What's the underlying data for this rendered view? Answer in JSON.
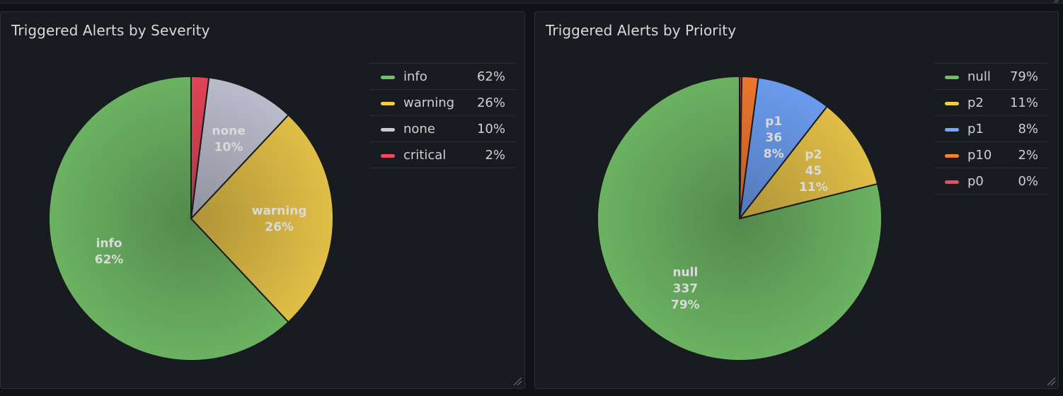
{
  "chart_data": [
    {
      "type": "pie",
      "title": "Triggered Alerts by Severity",
      "series": [
        {
          "name": "info",
          "percent": 62,
          "label": "info",
          "pct_label": "62%",
          "color": "#73bf69"
        },
        {
          "name": "warning",
          "percent": 26,
          "label": "warning",
          "pct_label": "26%",
          "color": "#f2cc4c"
        },
        {
          "name": "none",
          "percent": 10,
          "label": "none",
          "pct_label": "10%",
          "color": "#c8c9da"
        },
        {
          "name": "critical",
          "percent": 2,
          "label": "critical",
          "pct_label": "2%",
          "color": "#f2495c"
        }
      ],
      "legend": {
        "placement": "right",
        "show_percent": true
      }
    },
    {
      "type": "pie",
      "title": "Triggered Alerts by Priority",
      "series": [
        {
          "name": "null",
          "value": 337,
          "percent": 79,
          "label": "null",
          "value_label": "337",
          "pct_label": "79%",
          "color": "#73bf69"
        },
        {
          "name": "p2",
          "value": 45,
          "percent": 11,
          "label": "p2",
          "value_label": "45",
          "pct_label": "11%",
          "color": "#f2cc4c"
        },
        {
          "name": "p1",
          "value": 36,
          "percent": 8,
          "label": "p1",
          "value_label": "36",
          "pct_label": "8%",
          "color": "#73a7ff"
        },
        {
          "name": "p10",
          "value": 8,
          "percent": 2,
          "label": "p10",
          "value_label": "",
          "pct_label": "2%",
          "color": "#ff7f30"
        },
        {
          "name": "p0",
          "value": 1,
          "percent": 0,
          "label": "p0",
          "value_label": "",
          "pct_label": "0%",
          "color": "#f2495c"
        }
      ],
      "legend": {
        "placement": "right",
        "show_percent": true
      }
    }
  ]
}
